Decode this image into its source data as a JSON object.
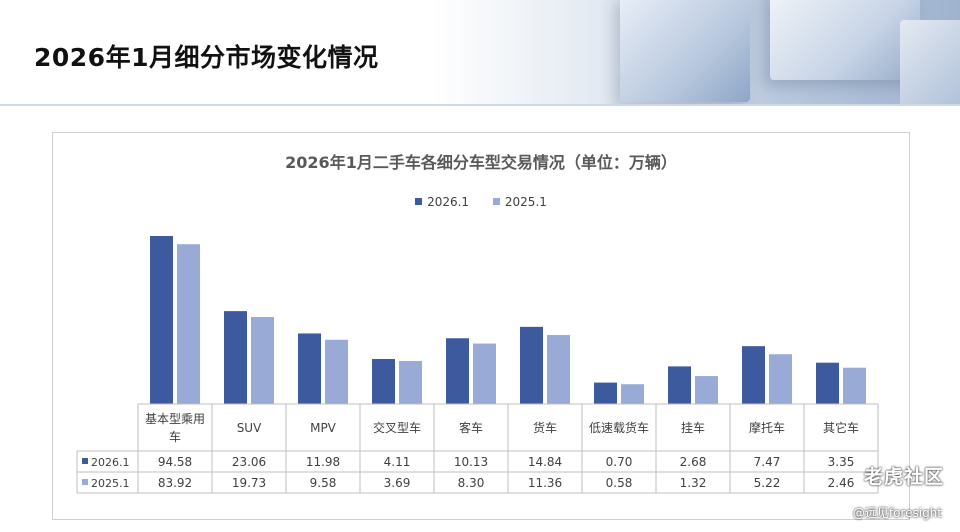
{
  "page": {
    "title": "2026年1月细分市场变化情况"
  },
  "watermark": {
    "text": "老虎社区",
    "credit": "@远见foresight"
  },
  "colors": {
    "series_2026": "#3d5a9e",
    "series_2025": "#9aaad6",
    "text": "#404040",
    "grid": "#bfbfbf"
  },
  "chart_data": {
    "type": "bar",
    "title": "2026年1月二手车各细分车型交易情况（单位：万辆）",
    "legend_position": "top-center",
    "categories": [
      "基本型乘用车",
      "SUV",
      "MPV",
      "交叉型车",
      "客车",
      "货车",
      "低速载货车",
      "挂车",
      "摩托车",
      "其它车"
    ],
    "series": [
      {
        "name": "2026.1",
        "values": [
          94.58,
          23.06,
          11.98,
          4.11,
          10.13,
          14.84,
          0.7,
          2.68,
          7.47,
          3.35
        ],
        "labels": [
          "94.58",
          "23.06",
          "11.98",
          "4.11",
          "10.13",
          "14.84",
          "0.70",
          "2.68",
          "7.47",
          "3.35"
        ]
      },
      {
        "name": "2025.1",
        "values": [
          83.92,
          19.73,
          9.58,
          3.69,
          8.3,
          11.36,
          0.58,
          1.32,
          5.22,
          2.46
        ],
        "labels": [
          "83.92",
          "19.73",
          "9.58",
          "3.69",
          "8.30",
          "11.36",
          "0.58",
          "1.32",
          "5.22",
          "2.46"
        ]
      }
    ],
    "scale": "nonlinear",
    "grid": false,
    "data_table": true
  }
}
